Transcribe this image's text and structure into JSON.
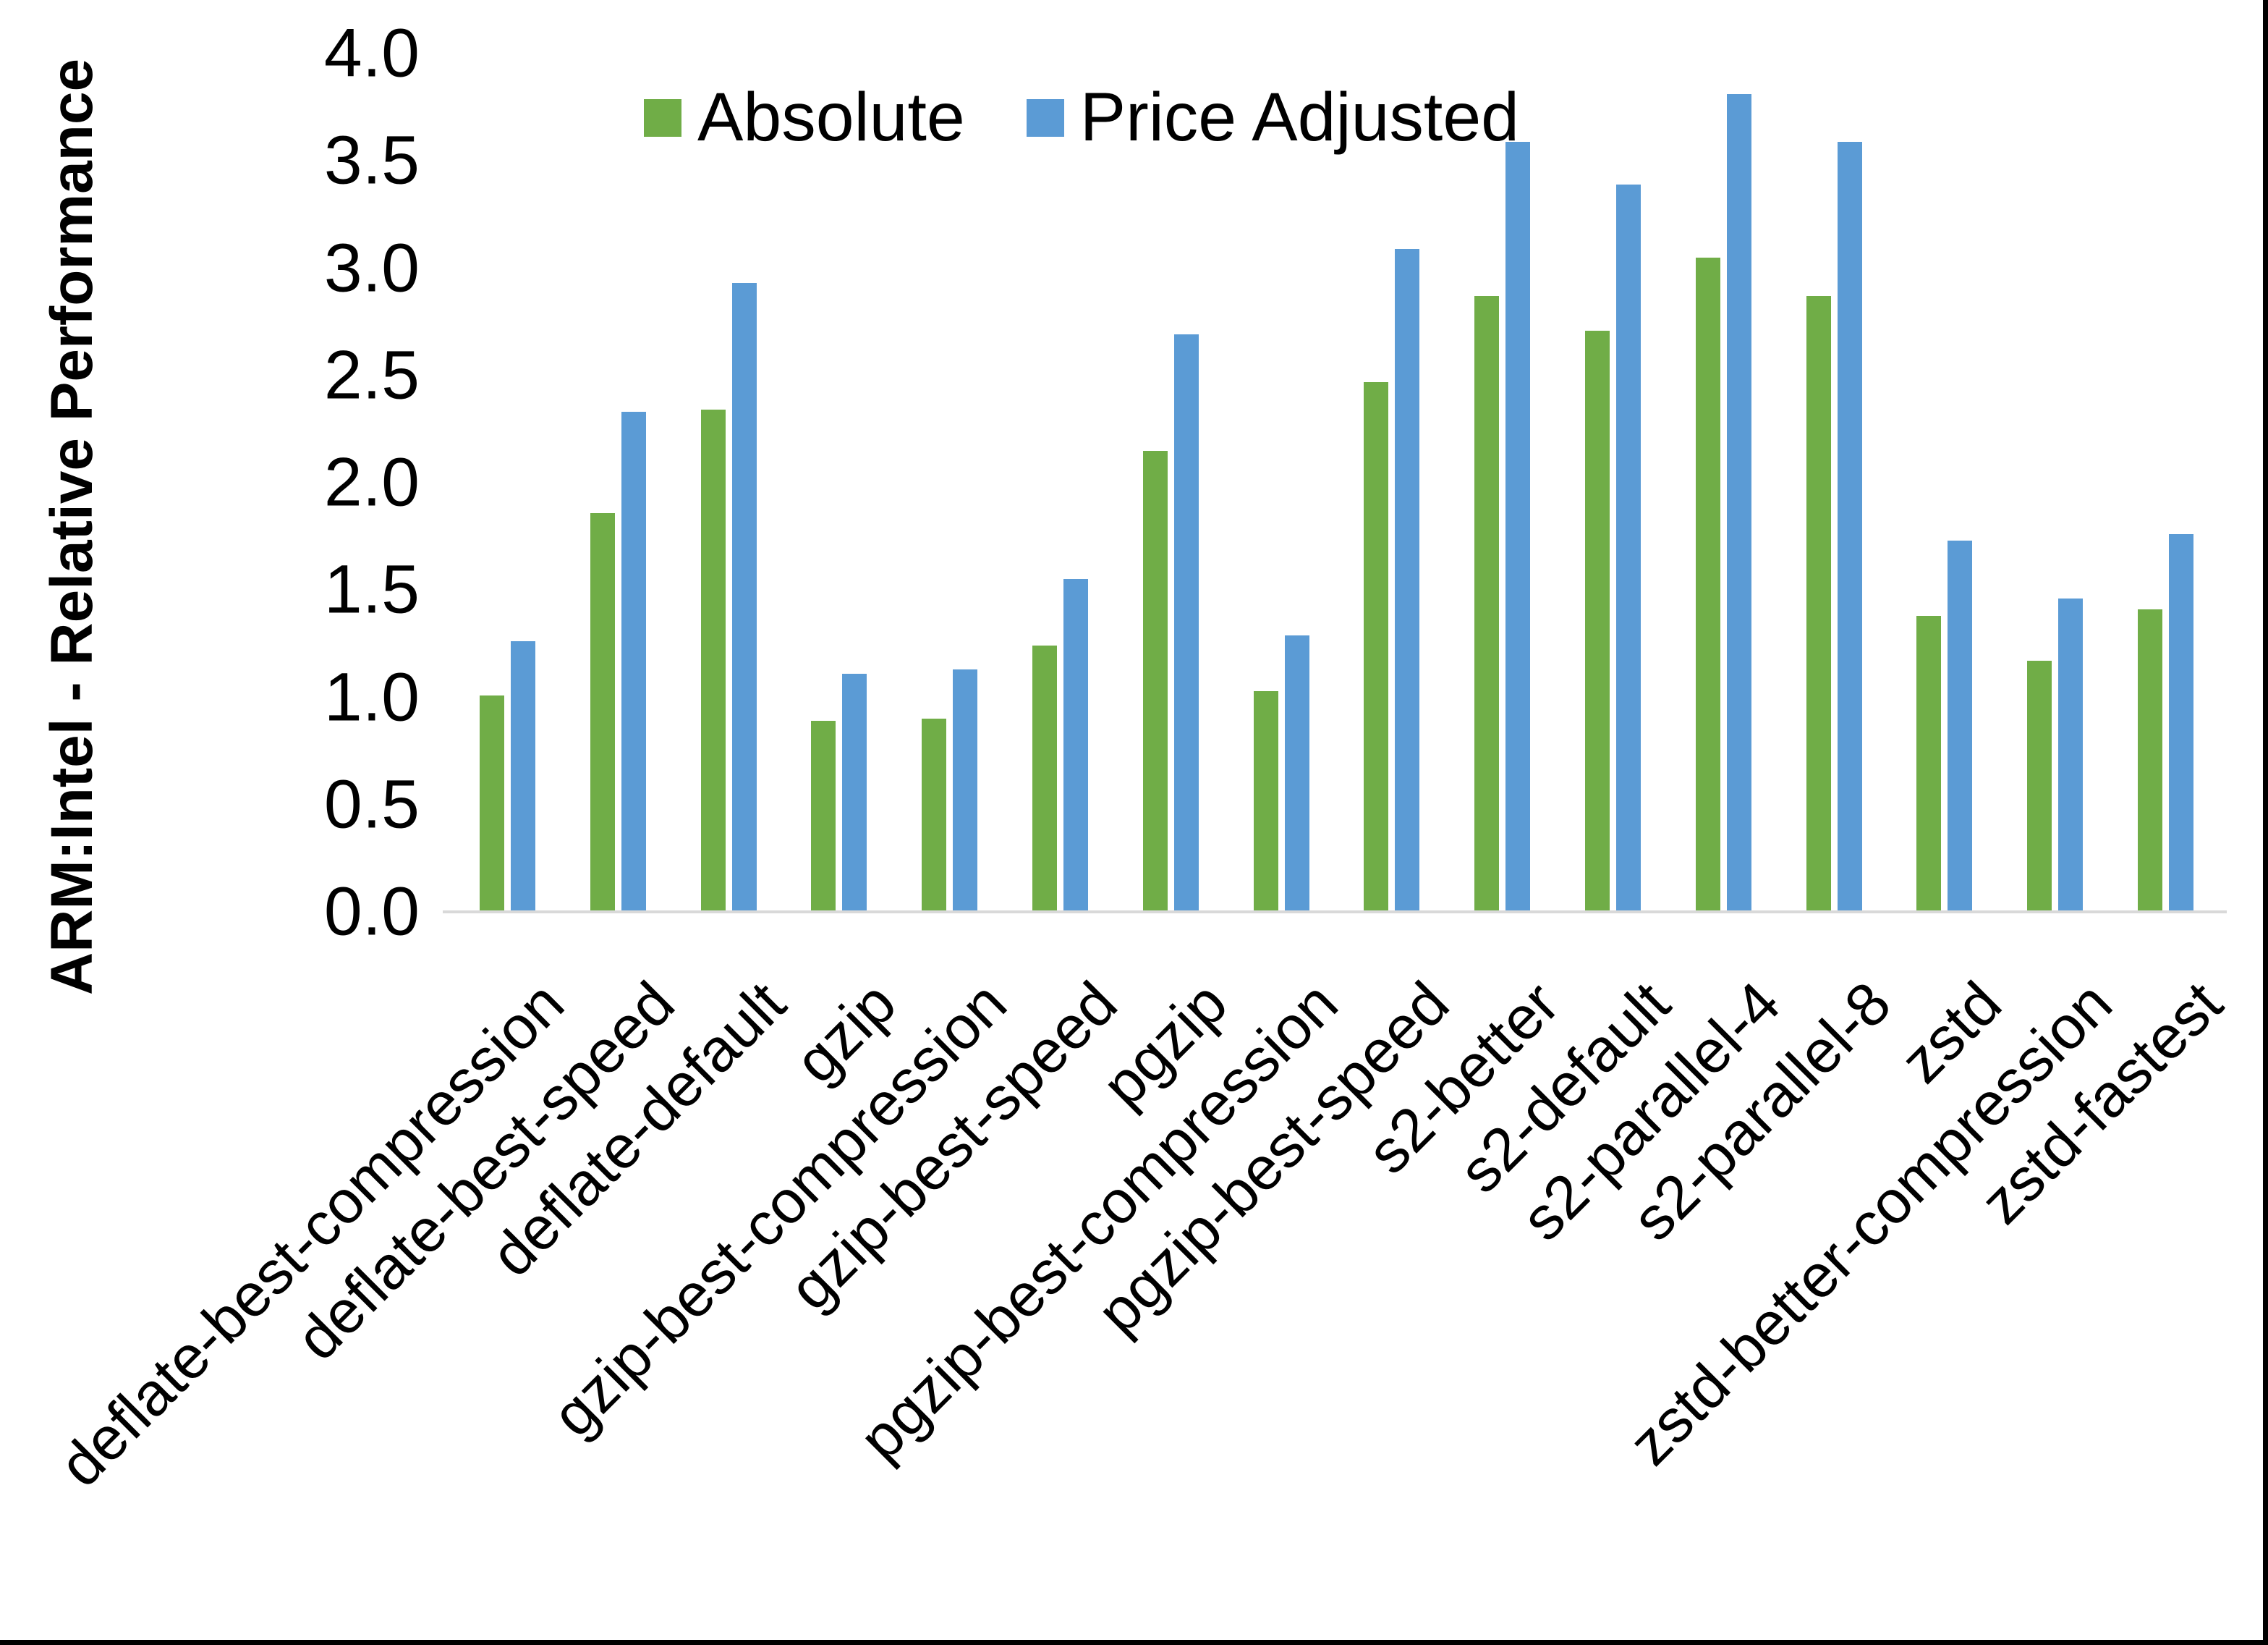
{
  "page": {
    "background": "#ffffff",
    "frame_border_color": "#000000"
  },
  "chart_data": {
    "type": "bar",
    "title": "",
    "ylabel": "ARM:Intel - Relative Performance",
    "xlabel": "",
    "ylim": [
      0,
      4.0
    ],
    "ytick_step": 0.5,
    "ytick_labels": [
      "0.0",
      "0.5",
      "1.0",
      "1.5",
      "2.0",
      "2.5",
      "3.0",
      "3.5",
      "4.0"
    ],
    "grid": false,
    "legend_position": "top",
    "axis_line_color": "#D9D9D9",
    "categories": [
      "deflate-best-compression",
      "deflate-best-speed",
      "deflate-default",
      "gzip",
      "gzip-best-compression",
      "gzip-best-speed",
      "pgzip",
      "pgzip-best-compression",
      "pgzip-best-speed",
      "s2-better",
      "s2-default",
      "s2-parallel-4",
      "s2-parallel-8",
      "zstd",
      "zstd-better-compression",
      "zstd-fastest"
    ],
    "series": [
      {
        "name": "Absolute",
        "color": "#70AD47",
        "values": [
          1.01,
          1.86,
          2.34,
          0.89,
          0.9,
          1.24,
          2.15,
          1.03,
          2.47,
          2.87,
          2.71,
          3.05,
          2.87,
          1.38,
          1.17,
          1.41
        ]
      },
      {
        "name": "Price Adjusted",
        "color": "#5B9BD5",
        "values": [
          1.26,
          2.33,
          2.93,
          1.11,
          1.13,
          1.55,
          2.69,
          1.29,
          3.09,
          3.59,
          3.39,
          3.81,
          3.59,
          1.73,
          1.46,
          1.76
        ]
      }
    ]
  }
}
